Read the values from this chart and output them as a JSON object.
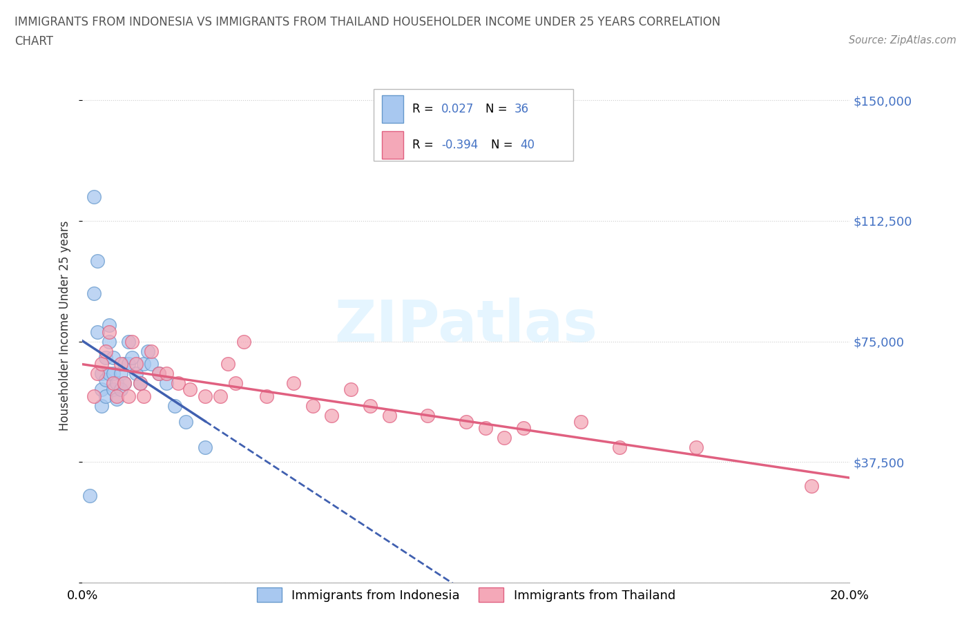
{
  "title_line1": "IMMIGRANTS FROM INDONESIA VS IMMIGRANTS FROM THAILAND HOUSEHOLDER INCOME UNDER 25 YEARS CORRELATION",
  "title_line2": "CHART",
  "source": "Source: ZipAtlas.com",
  "ylabel": "Householder Income Under 25 years",
  "xlim": [
    0.0,
    0.2
  ],
  "ylim": [
    0,
    160000
  ],
  "yticks": [
    0,
    37500,
    75000,
    112500,
    150000
  ],
  "ytick_labels": [
    "",
    "$37,500",
    "$75,000",
    "$112,500",
    "$150,000"
  ],
  "xticks": [
    0.0,
    0.05,
    0.1,
    0.15,
    0.2
  ],
  "xtick_labels": [
    "0.0%",
    "",
    "",
    "",
    "20.0%"
  ],
  "indonesia_color": "#a8c8f0",
  "thailand_color": "#f4a8b8",
  "indonesia_edge_color": "#6699cc",
  "thailand_edge_color": "#e06080",
  "trend_line_indonesia_color": "#4060b0",
  "trend_line_thailand_color": "#e06080",
  "R_indonesia": 0.027,
  "N_indonesia": 36,
  "R_thailand": -0.394,
  "N_thailand": 40,
  "watermark": "ZIPatlas",
  "indonesia_x": [
    0.002,
    0.003,
    0.003,
    0.004,
    0.004,
    0.005,
    0.005,
    0.005,
    0.006,
    0.006,
    0.006,
    0.007,
    0.007,
    0.007,
    0.008,
    0.008,
    0.008,
    0.009,
    0.009,
    0.01,
    0.01,
    0.011,
    0.011,
    0.012,
    0.012,
    0.013,
    0.014,
    0.015,
    0.016,
    0.017,
    0.018,
    0.02,
    0.022,
    0.024,
    0.027,
    0.032
  ],
  "indonesia_y": [
    27000,
    90000,
    120000,
    100000,
    78000,
    65000,
    60000,
    55000,
    70000,
    63000,
    58000,
    80000,
    75000,
    65000,
    70000,
    65000,
    60000,
    62000,
    57000,
    65000,
    60000,
    68000,
    62000,
    75000,
    68000,
    70000,
    65000,
    62000,
    68000,
    72000,
    68000,
    65000,
    62000,
    55000,
    50000,
    42000
  ],
  "thailand_x": [
    0.003,
    0.004,
    0.005,
    0.006,
    0.007,
    0.008,
    0.009,
    0.01,
    0.011,
    0.012,
    0.013,
    0.014,
    0.015,
    0.016,
    0.018,
    0.02,
    0.022,
    0.025,
    0.028,
    0.032,
    0.036,
    0.038,
    0.04,
    0.042,
    0.048,
    0.055,
    0.06,
    0.065,
    0.07,
    0.075,
    0.08,
    0.09,
    0.1,
    0.105,
    0.11,
    0.115,
    0.13,
    0.14,
    0.16,
    0.19
  ],
  "thailand_y": [
    58000,
    65000,
    68000,
    72000,
    78000,
    62000,
    58000,
    68000,
    62000,
    58000,
    75000,
    68000,
    62000,
    58000,
    72000,
    65000,
    65000,
    62000,
    60000,
    58000,
    58000,
    68000,
    62000,
    75000,
    58000,
    62000,
    55000,
    52000,
    60000,
    55000,
    52000,
    52000,
    50000,
    48000,
    45000,
    48000,
    50000,
    42000,
    42000,
    30000
  ]
}
